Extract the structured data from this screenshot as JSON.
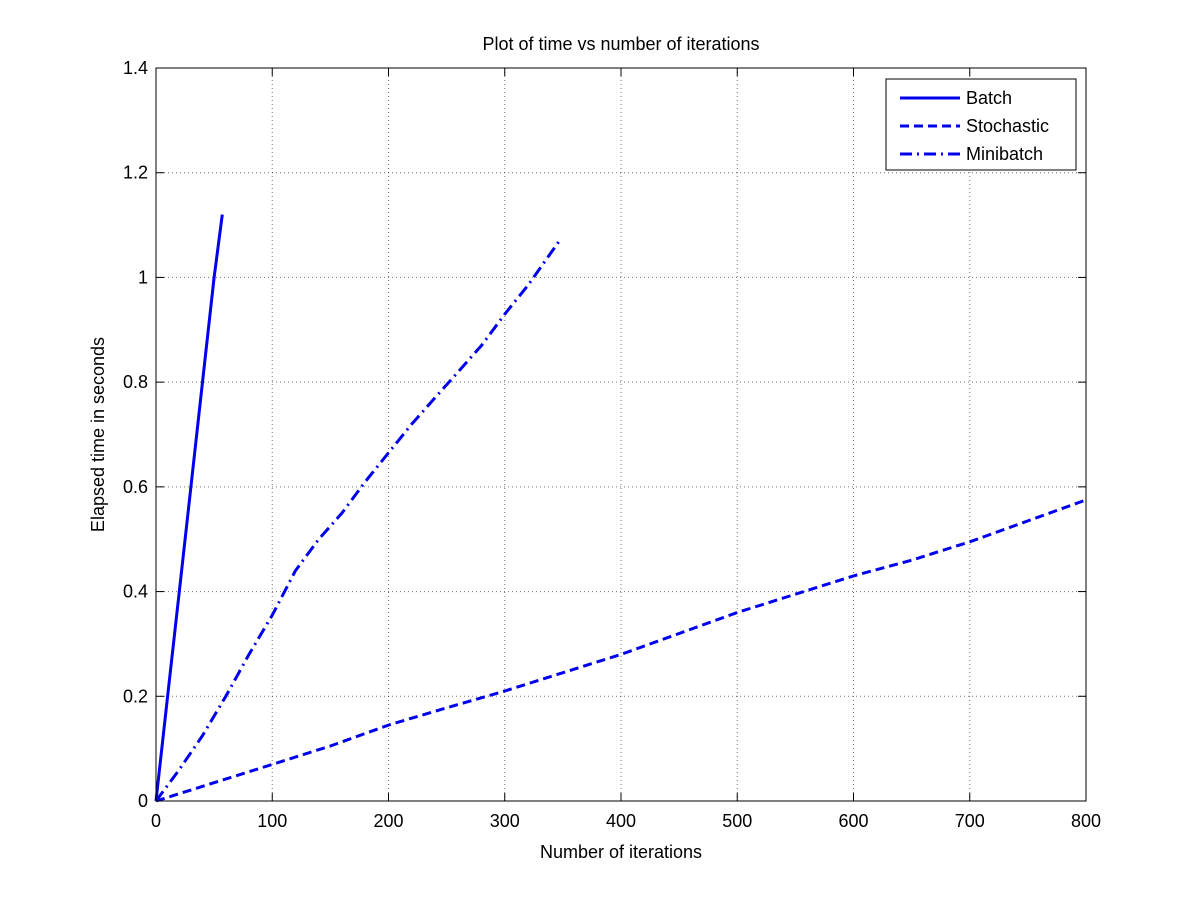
{
  "chart_data": {
    "type": "line",
    "title": "Plot of time vs number of iterations",
    "xlabel": "Number of iterations",
    "ylabel": "Elapsed time in seconds",
    "xlim": [
      0,
      800
    ],
    "ylim": [
      0,
      1.4
    ],
    "xticks": [
      0,
      100,
      200,
      300,
      400,
      500,
      600,
      700,
      800
    ],
    "yticks": [
      0,
      0.2,
      0.4,
      0.6,
      0.8,
      1,
      1.2,
      1.4
    ],
    "xtick_labels": [
      "0",
      "100",
      "200",
      "300",
      "400",
      "500",
      "600",
      "700",
      "800"
    ],
    "ytick_labels": [
      "0",
      "0.2",
      "0.4",
      "0.6",
      "0.8",
      "1",
      "1.2",
      "1.4"
    ],
    "grid": true,
    "legend_position": "top-right",
    "line_color": "#0000ee",
    "series": [
      {
        "name": "Batch",
        "style": "solid",
        "x": [
          0,
          10,
          20,
          30,
          40,
          50,
          57
        ],
        "y": [
          0,
          0.2,
          0.4,
          0.6,
          0.8,
          1.0,
          1.12
        ]
      },
      {
        "name": "Stochastic",
        "style": "dashed",
        "x": [
          0,
          50,
          100,
          150,
          200,
          250,
          300,
          350,
          400,
          450,
          500,
          550,
          600,
          650,
          700,
          750,
          800
        ],
        "y": [
          0,
          0.035,
          0.07,
          0.105,
          0.145,
          0.178,
          0.21,
          0.245,
          0.28,
          0.32,
          0.36,
          0.395,
          0.43,
          0.46,
          0.495,
          0.535,
          0.575
        ]
      },
      {
        "name": "Minibatch",
        "style": "dashdot",
        "x": [
          0,
          20,
          40,
          60,
          80,
          100,
          120,
          140,
          160,
          180,
          200,
          220,
          240,
          260,
          280,
          300,
          320,
          347
        ],
        "y": [
          0,
          0.06,
          0.125,
          0.2,
          0.28,
          0.355,
          0.44,
          0.5,
          0.55,
          0.61,
          0.665,
          0.72,
          0.77,
          0.82,
          0.87,
          0.93,
          0.985,
          1.07
        ]
      }
    ]
  }
}
